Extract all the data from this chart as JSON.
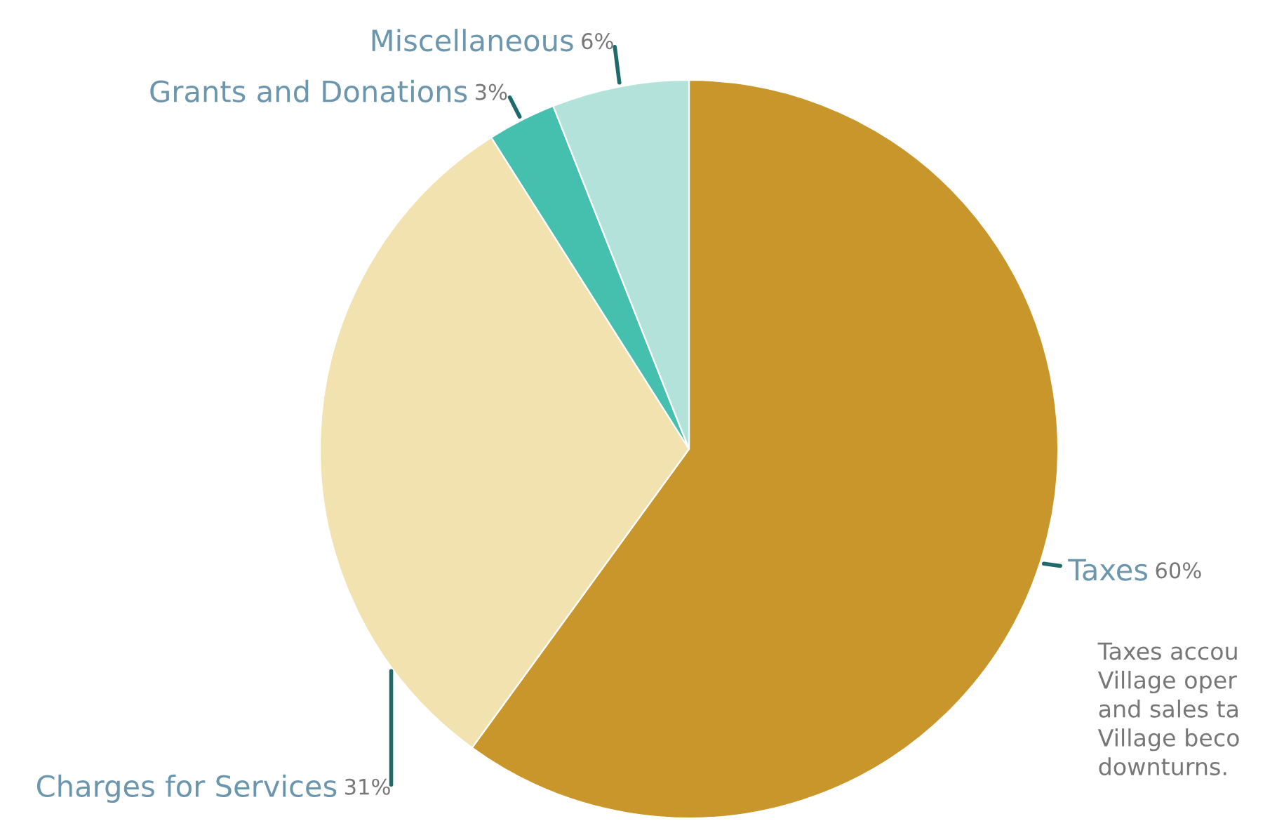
{
  "chart_data": {
    "type": "pie",
    "categories": [
      "Taxes",
      "Charges for Services",
      "Grants and Donations",
      "Miscellaneous"
    ],
    "values": [
      60,
      31,
      3,
      6
    ],
    "colors": [
      "#c9962b",
      "#f2e2b0",
      "#45bfae",
      "#b3e2da"
    ],
    "value_labels": [
      "60%",
      "31%",
      "3%",
      "6%"
    ],
    "annotations": [
      "Taxes accou\nVillage oper\nand sales ta\nVillage beco\ndownturns."
    ]
  }
}
